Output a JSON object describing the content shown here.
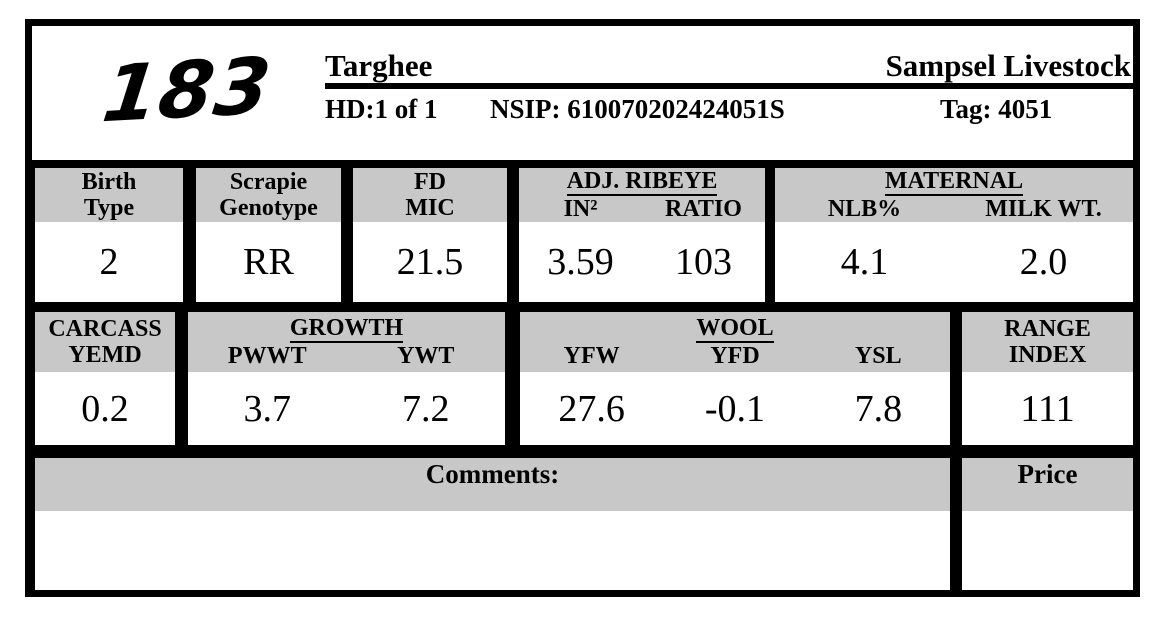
{
  "header": {
    "lot_number": "183",
    "breed": "Targhee",
    "ranch": "Sampsel Livestock",
    "hd_text": "HD:1 of 1",
    "nsip_text": "NSIP: 610070202424051S",
    "tag_text": "Tag: 4051"
  },
  "stats": {
    "birth_type": {
      "label1": "Birth",
      "label2": "Type",
      "value": "2"
    },
    "scrapie": {
      "label1": "Scrapie",
      "label2": "Genotype",
      "value": "RR"
    },
    "fd_mic": {
      "label1": "FD",
      "label2": "MIC",
      "value": "21.5"
    },
    "adj_ribeye": {
      "group": "ADJ. RIBEYE",
      "col1": "IN²",
      "col2": "RATIO",
      "val1": "3.59",
      "val2": "103"
    },
    "maternal": {
      "group": "MATERNAL",
      "col1": "NLB%",
      "col2": "MILK WT.",
      "val1": "4.1",
      "val2": "2.0"
    },
    "carcass": {
      "label1": "CARCASS",
      "label2": "YEMD",
      "value": "0.2"
    },
    "growth": {
      "group": "GROWTH",
      "col1": "PWWT",
      "col2": "YWT",
      "val1": "3.7",
      "val2": "7.2"
    },
    "wool": {
      "group": "WOOL",
      "col1": "YFW",
      "col2": "YFD",
      "col3": "YSL",
      "val1": "27.6",
      "val2": "-0.1",
      "val3": "7.8"
    },
    "range_index": {
      "label1": "RANGE",
      "label2": "INDEX",
      "value": "111"
    }
  },
  "footer": {
    "comments_label": "Comments:",
    "price_label": "Price"
  },
  "colors": {
    "band_gray": "#c8c8c8",
    "border_black": "#000000",
    "page_bg": "#ffffff"
  }
}
